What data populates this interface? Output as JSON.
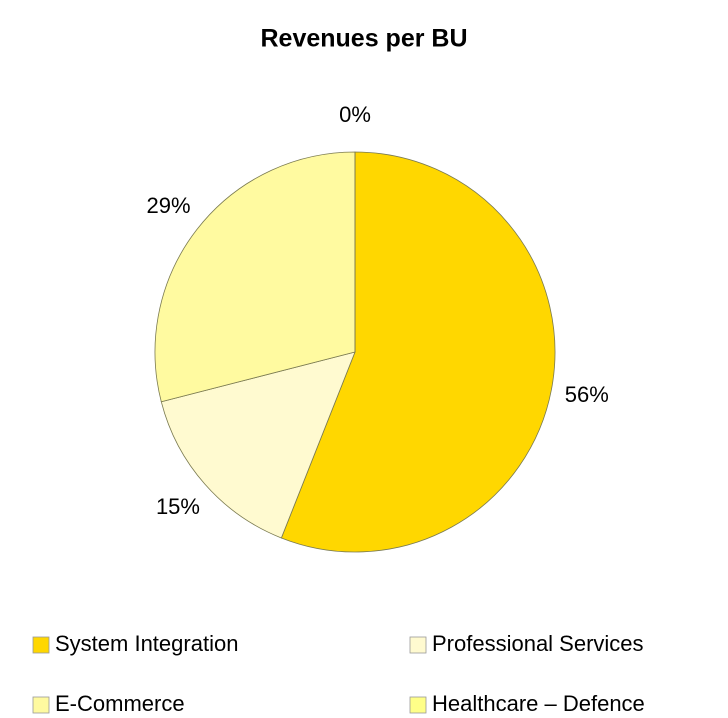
{
  "chart_data": {
    "type": "pie",
    "title": "Revenues per BU",
    "categories": [
      "System Integration",
      "Professional Services",
      "E-Commerce",
      "Healthcare – Defence"
    ],
    "values": [
      56,
      15,
      29,
      0
    ],
    "value_labels": [
      "56%",
      "15%",
      "29%",
      "0%"
    ],
    "colors": [
      "#ffd700",
      "#fffad0",
      "#fffaa0",
      "#ffff88"
    ]
  }
}
